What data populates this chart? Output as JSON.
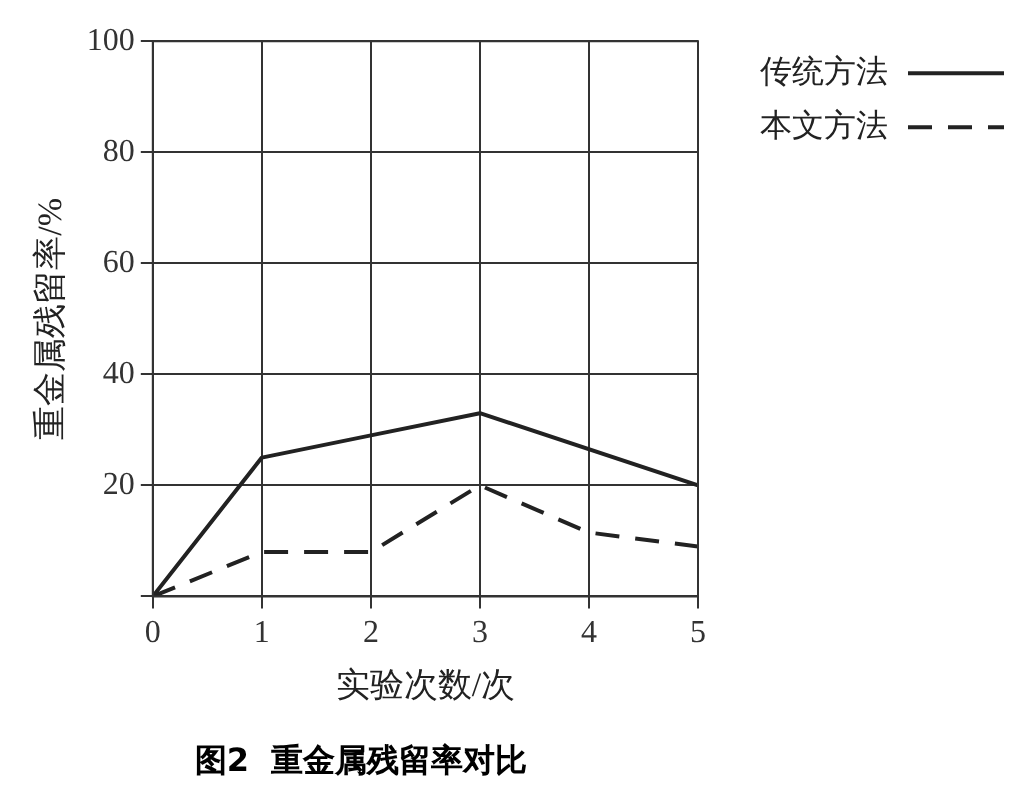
{
  "chart_data": {
    "type": "line",
    "title": "图2  重金属残留率对比",
    "xlabel": "实验次数/次",
    "ylabel": "重金属残留率/%",
    "x": [
      0,
      1,
      2,
      3,
      4,
      5
    ],
    "series": [
      {
        "name": "传统方法",
        "color": "#222222",
        "values": [
          0,
          25,
          29,
          33,
          null,
          20
        ],
        "line_style": "solid"
      },
      {
        "name": "本文方法",
        "color": "#222222",
        "values": [
          0,
          8,
          8,
          20,
          11.5,
          9
        ],
        "line_style": "dashed"
      }
    ],
    "xlim": [
      0,
      5
    ],
    "xticks": [
      0,
      1,
      2,
      3,
      4,
      5
    ],
    "ylim": [
      0,
      100
    ],
    "yticks": [
      {
        "value": 0,
        "label": null
      },
      20,
      40,
      60,
      80,
      100
    ],
    "grid": true,
    "legend": "right",
    "marker": "none"
  }
}
